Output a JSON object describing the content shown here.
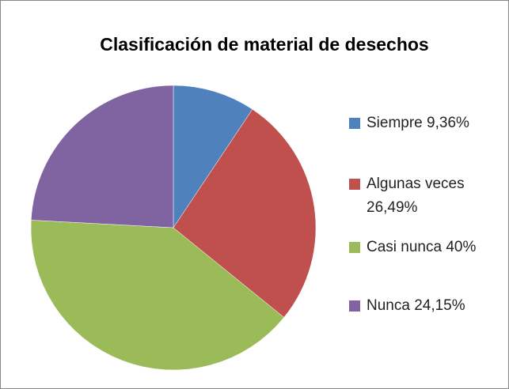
{
  "chart_data": {
    "type": "pie",
    "title": "Clasificación de material de desechos",
    "categories": [
      "Siempre 9,36%",
      "Algunas veces 26,49%",
      "Casi nunca 40%",
      "Nunca 24,15%"
    ],
    "values": [
      9.36,
      26.49,
      40,
      24.15
    ],
    "colors": [
      "#4f81bd",
      "#c0504d",
      "#9bbb59",
      "#8064a2"
    ],
    "legend": "right"
  }
}
